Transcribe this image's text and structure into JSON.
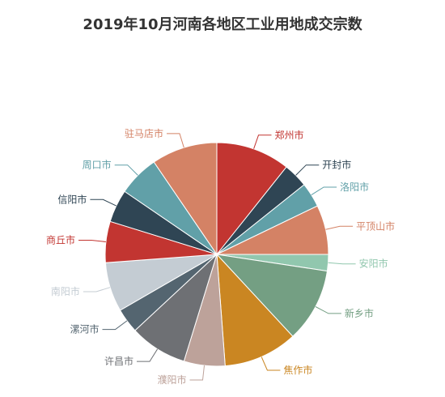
{
  "chart_data": {
    "type": "pie",
    "title": "2019年10月河南各地区工业用地成交宗数",
    "slices": [
      {
        "label": "郑州市",
        "value": 9,
        "color": "#c23531"
      },
      {
        "label": "开封市",
        "value": 3,
        "color": "#2f4554"
      },
      {
        "label": "洛阳市",
        "value": 3,
        "color": "#61a0a8"
      },
      {
        "label": "平顶山市",
        "value": 6,
        "color": "#d48265"
      },
      {
        "label": "安阳市",
        "value": 2,
        "color": "#91c7ae"
      },
      {
        "label": "新乡市",
        "value": 9,
        "color": "#749f83"
      },
      {
        "label": "焦作市",
        "value": 9,
        "color": "#ca8622"
      },
      {
        "label": "濮阳市",
        "value": 5,
        "color": "#bda29a"
      },
      {
        "label": "许昌市",
        "value": 7,
        "color": "#6e7074"
      },
      {
        "label": "漯河市",
        "value": 3,
        "color": "#546570"
      },
      {
        "label": "南阳市",
        "value": 6,
        "color": "#c4ccd3"
      },
      {
        "label": "商丘市",
        "value": 5,
        "color": "#c23531"
      },
      {
        "label": "信阳市",
        "value": 4,
        "color": "#2f4554"
      },
      {
        "label": "周口市",
        "value": 5,
        "color": "#61a0a8"
      },
      {
        "label": "驻马店市",
        "value": 8,
        "color": "#d48265"
      }
    ]
  }
}
